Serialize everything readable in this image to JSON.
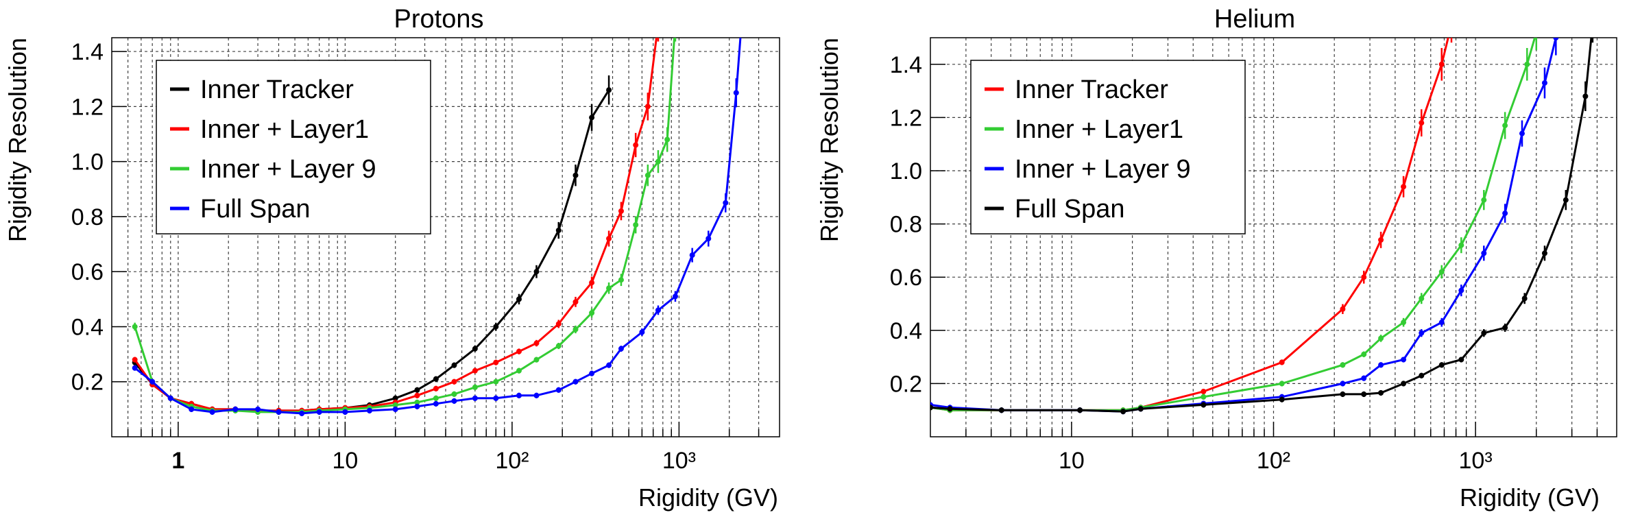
{
  "chart_data": [
    {
      "type": "line",
      "title": "Protons",
      "xlabel": "Rigidity (GV)",
      "ylabel": "Rigidity Resolution",
      "x_scale": "log",
      "xlim": [
        0.4,
        4000
      ],
      "ylim": [
        0,
        1.45
      ],
      "x_ticks": [
        "1",
        "10",
        "10²",
        "10³"
      ],
      "y_ticks": [
        "0.2",
        "0.4",
        "0.6",
        "0.8",
        "1.0",
        "1.2",
        "1.4"
      ],
      "grid": true,
      "legend": "top-left",
      "series": [
        {
          "name": "Inner Tracker",
          "color": "#000000",
          "x": [
            0.55,
            0.7,
            0.9,
            1.2,
            1.6,
            2.2,
            3,
            4,
            5.5,
            7,
            10,
            14,
            20,
            27,
            35,
            45,
            60,
            80,
            110,
            140,
            190,
            240,
            300,
            380
          ],
          "y": [
            0.27,
            0.19,
            0.14,
            0.12,
            0.1,
            0.1,
            0.095,
            0.095,
            0.095,
            0.1,
            0.105,
            0.115,
            0.14,
            0.17,
            0.21,
            0.26,
            0.32,
            0.4,
            0.5,
            0.6,
            0.75,
            0.95,
            1.16,
            1.26
          ]
        },
        {
          "name": "Inner + Layer1",
          "color": "#ff0000",
          "x": [
            0.55,
            0.7,
            0.9,
            1.2,
            1.6,
            2.2,
            3,
            4,
            5.5,
            7,
            10,
            14,
            20,
            27,
            35,
            45,
            60,
            80,
            110,
            140,
            190,
            240,
            300,
            380,
            450,
            550,
            650,
            750
          ],
          "y": [
            0.28,
            0.19,
            0.14,
            0.12,
            0.1,
            0.1,
            0.095,
            0.095,
            0.095,
            0.1,
            0.105,
            0.11,
            0.125,
            0.15,
            0.175,
            0.2,
            0.24,
            0.27,
            0.31,
            0.34,
            0.41,
            0.49,
            0.56,
            0.72,
            0.82,
            1.06,
            1.2,
            1.5
          ]
        },
        {
          "name": "Inner + Layer 9",
          "color": "#33cc33",
          "x": [
            0.55,
            0.7,
            0.9,
            1.2,
            1.6,
            2.2,
            3,
            4,
            5.5,
            7,
            10,
            14,
            20,
            27,
            35,
            45,
            60,
            80,
            110,
            140,
            190,
            240,
            300,
            380,
            450,
            550,
            650,
            750,
            850,
            950
          ],
          "y": [
            0.4,
            0.2,
            0.14,
            0.11,
            0.095,
            0.095,
            0.09,
            0.09,
            0.09,
            0.095,
            0.1,
            0.105,
            0.115,
            0.125,
            0.14,
            0.155,
            0.18,
            0.2,
            0.24,
            0.28,
            0.33,
            0.39,
            0.45,
            0.54,
            0.57,
            0.77,
            0.95,
            1.0,
            1.08,
            1.5
          ]
        },
        {
          "name": "Full Span",
          "color": "#0000ff",
          "x": [
            0.55,
            0.7,
            0.9,
            1.2,
            1.6,
            2.2,
            3,
            4,
            5.5,
            7,
            10,
            14,
            20,
            27,
            35,
            45,
            60,
            80,
            110,
            140,
            190,
            240,
            300,
            380,
            450,
            600,
            750,
            950,
            1200,
            1500,
            1900,
            2200,
            2400
          ],
          "y": [
            0.25,
            0.2,
            0.14,
            0.1,
            0.09,
            0.1,
            0.1,
            0.09,
            0.085,
            0.09,
            0.09,
            0.095,
            0.1,
            0.11,
            0.12,
            0.13,
            0.14,
            0.14,
            0.15,
            0.15,
            0.17,
            0.2,
            0.23,
            0.26,
            0.32,
            0.38,
            0.46,
            0.51,
            0.66,
            0.72,
            0.85,
            1.25,
            1.55
          ]
        }
      ]
    },
    {
      "type": "line",
      "title": "Helium",
      "xlabel": "Rigidity (GV)",
      "ylabel": "Rigidity Resolution",
      "x_scale": "log",
      "xlim": [
        2,
        5000
      ],
      "ylim": [
        0,
        1.5
      ],
      "x_ticks": [
        "10",
        "10²",
        "10³"
      ],
      "y_ticks": [
        "0.2",
        "0.4",
        "0.6",
        "0.8",
        "1.0",
        "1.2",
        "1.4"
      ],
      "grid": true,
      "legend": "top-left",
      "series": [
        {
          "name": "Inner Tracker",
          "color": "#ff0000",
          "x": [
            2,
            2.5,
            4.5,
            11,
            18,
            22,
            45,
            110,
            220,
            280,
            340,
            440,
            540,
            680,
            760
          ],
          "y": [
            0.11,
            0.1,
            0.1,
            0.1,
            0.1,
            0.11,
            0.17,
            0.28,
            0.48,
            0.6,
            0.74,
            0.94,
            1.18,
            1.4,
            1.55
          ]
        },
        {
          "name": "Inner + Layer1",
          "color": "#33cc33",
          "x": [
            2,
            2.5,
            4.5,
            11,
            18,
            22,
            45,
            110,
            220,
            280,
            340,
            440,
            540,
            680,
            850,
            1100,
            1400,
            1800,
            2000
          ],
          "y": [
            0.11,
            0.1,
            0.1,
            0.1,
            0.1,
            0.11,
            0.15,
            0.2,
            0.27,
            0.31,
            0.37,
            0.43,
            0.52,
            0.62,
            0.72,
            0.89,
            1.17,
            1.4,
            1.52
          ]
        },
        {
          "name": "Inner + Layer 9",
          "color": "#0000ff",
          "x": [
            2,
            2.5,
            4.5,
            11,
            18,
            22,
            45,
            110,
            220,
            280,
            340,
            440,
            540,
            680,
            850,
            1100,
            1400,
            1700,
            2200,
            2500
          ],
          "y": [
            0.12,
            0.11,
            0.1,
            0.1,
            0.095,
            0.105,
            0.125,
            0.15,
            0.2,
            0.22,
            0.27,
            0.29,
            0.39,
            0.43,
            0.55,
            0.69,
            0.84,
            1.14,
            1.33,
            1.5
          ]
        },
        {
          "name": "Full Span",
          "color": "#000000",
          "x": [
            2,
            2.5,
            4.5,
            11,
            18,
            22,
            45,
            110,
            220,
            280,
            340,
            440,
            540,
            680,
            850,
            1100,
            1400,
            1750,
            2200,
            2800,
            3500,
            3800
          ],
          "y": [
            0.11,
            0.105,
            0.1,
            0.1,
            0.095,
            0.105,
            0.12,
            0.14,
            0.16,
            0.16,
            0.165,
            0.2,
            0.23,
            0.27,
            0.29,
            0.39,
            0.41,
            0.52,
            0.69,
            0.89,
            1.28,
            1.55
          ]
        }
      ]
    }
  ]
}
